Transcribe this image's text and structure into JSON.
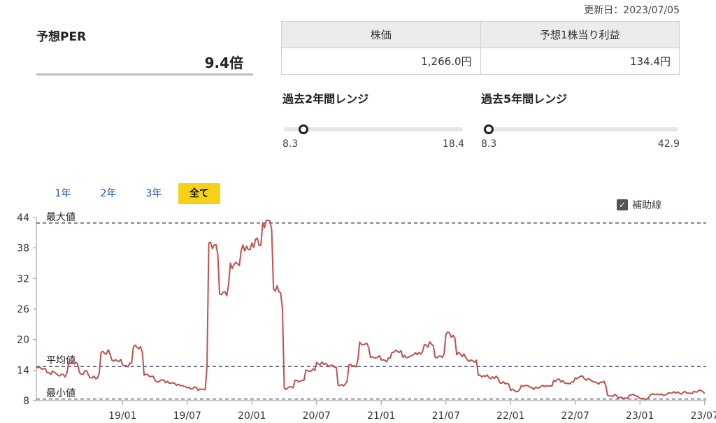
{
  "updated": "更新日：2023/07/05",
  "per": {
    "label": "予想PER",
    "value": "9.4倍"
  },
  "stats": {
    "price_header": "株価",
    "eps_header": "予想1株当り利益",
    "price_value": "1,266.0円",
    "eps_value": "134.4円"
  },
  "ranges": [
    {
      "title": "過去2年間レンジ",
      "min": "8.3",
      "max": "18.4",
      "current": 9.4,
      "min_num": 8.3,
      "max_num": 18.4
    },
    {
      "title": "過去5年間レンジ",
      "min": "8.3",
      "max": "42.9",
      "current": 9.4,
      "min_num": 8.3,
      "max_num": 42.9
    }
  ],
  "tabs": [
    "1年",
    "2年",
    "3年",
    "全て"
  ],
  "active_tab": 3,
  "aux_line": {
    "label": "補助線",
    "checked": true
  },
  "colors": {
    "line": "#c0504d",
    "ref": "#3a3a7a",
    "accent": "#f7d117"
  },
  "chart_data": {
    "type": "line",
    "ylim": [
      8,
      44
    ],
    "yticks": [
      8,
      14,
      20,
      26,
      32,
      38,
      44
    ],
    "xtick_labels": [
      "19/01",
      "19/07",
      "20/01",
      "20/07",
      "21/01",
      "21/07",
      "22/01",
      "22/07",
      "23/01",
      "23/07"
    ],
    "reference_lines": [
      {
        "label": "最大値",
        "value": 42.9
      },
      {
        "label": "平均値",
        "value": 14.7
      },
      {
        "label": "最小値",
        "value": 8.3
      }
    ],
    "series": [
      {
        "x": [
          "18/05",
          "18/06",
          "18/07",
          "18/08",
          "18/09",
          "18/10",
          "18/11",
          "18/12",
          "19/01",
          "19/02",
          "19/03",
          "19/04",
          "19/05",
          "19/06",
          "19/07",
          "19/08",
          "19/09",
          "19/10",
          "19/11",
          "19/12",
          "20/01",
          "20/02",
          "20/03",
          "20/04",
          "20/05",
          "20/06",
          "20/07",
          "20/08",
          "20/09",
          "20/10",
          "20/11",
          "20/12",
          "21/01",
          "21/02",
          "21/03",
          "21/04",
          "21/05",
          "21/06",
          "21/07",
          "21/08",
          "21/09",
          "21/10",
          "21/11",
          "21/12",
          "22/01",
          "22/02",
          "22/03",
          "22/04",
          "22/05",
          "22/06",
          "22/07",
          "22/08",
          "22/09",
          "22/10",
          "22/11",
          "22/12",
          "23/01",
          "23/02",
          "23/03",
          "23/04",
          "23/05",
          "23/06",
          "23/07"
        ],
        "values": [
          14.5,
          13.5,
          13.0,
          15.5,
          13.5,
          12.5,
          17.5,
          16.0,
          15.0,
          18.5,
          13.0,
          12.0,
          11.5,
          11.0,
          10.5,
          10.0,
          39.0,
          29.0,
          35.0,
          37.5,
          39.0,
          42.9,
          30.0,
          10.5,
          12.0,
          14.0,
          15.5,
          15.0,
          11.0,
          15.0,
          19.5,
          16.5,
          16.0,
          17.5,
          16.5,
          17.0,
          19.0,
          16.5,
          21.0,
          17.0,
          16.0,
          13.0,
          12.5,
          11.5,
          10.0,
          11.0,
          10.5,
          11.0,
          12.0,
          11.5,
          12.5,
          12.0,
          11.5,
          9.0,
          8.5,
          9.0,
          8.4,
          9.2,
          9.3,
          9.5,
          9.6,
          9.8,
          9.4
        ]
      }
    ]
  }
}
